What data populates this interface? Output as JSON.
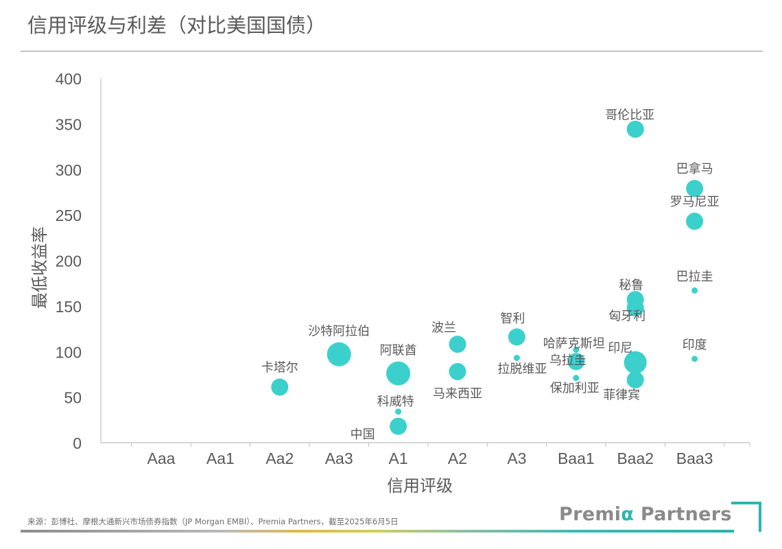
{
  "page": {
    "title": "信用评级与利差（对比美国国债）",
    "source": "来源：彭博社、摩根大通新兴市场债券指数（JP Morgan EMBI）、Premia Partners，截至2025年6月5日",
    "logo": {
      "text_main": "Premi",
      "text_alpha": "α",
      "text_rest": " Partners"
    },
    "colors": {
      "bubble": "#3cd0cc",
      "axis": "#bfbfbf",
      "text": "#595959",
      "accent": "#2bb5b3"
    }
  },
  "chart_data": {
    "type": "scatter",
    "title": "信用评级与利差（对比美国国债）",
    "xlabel": "信用评级",
    "ylabel": "最低收益率",
    "categories": [
      "Aaa",
      "Aa1",
      "Aa2",
      "Aa3",
      "A1",
      "A2",
      "A3",
      "Baa1",
      "Baa2",
      "Baa3"
    ],
    "ylim": [
      0,
      400
    ],
    "yticks": [
      0,
      50,
      100,
      150,
      200,
      250,
      300,
      350,
      400
    ],
    "grid": false,
    "points": [
      {
        "label": "卡塔尔",
        "rating": "Aa2",
        "y": 61,
        "size": "medium",
        "label_pos": "above"
      },
      {
        "label": "沙特阿拉伯",
        "rating": "Aa3",
        "y": 97,
        "size": "large",
        "label_pos": "above"
      },
      {
        "label": "阿联酋",
        "rating": "A1",
        "y": 76,
        "size": "large",
        "label_pos": "above"
      },
      {
        "label": "科威特",
        "rating": "A1",
        "y": 34,
        "size": "small",
        "label_pos": "above"
      },
      {
        "label": "中国",
        "rating": "A1",
        "y": 18,
        "size": "medium",
        "label_pos": "below-left"
      },
      {
        "label": "波兰",
        "rating": "A2",
        "y": 108,
        "size": "medium",
        "label_pos": "above-left"
      },
      {
        "label": "马来西亚",
        "rating": "A2",
        "y": 78,
        "size": "medium",
        "label_pos": "below"
      },
      {
        "label": "智利",
        "rating": "A3",
        "y": 116,
        "size": "medium",
        "label_pos": "above-left"
      },
      {
        "label": "拉脱维亚",
        "rating": "A3",
        "y": 93,
        "size": "small",
        "label_pos": "below"
      },
      {
        "label": "哈萨克斯坦",
        "rating": "Baa1",
        "y": 102,
        "size": "small",
        "label_pos": "above-left"
      },
      {
        "label": "乌拉圭",
        "rating": "Baa1",
        "y": 89,
        "size": "medium",
        "label_pos": "below-left"
      },
      {
        "label": "保加利亚",
        "rating": "Baa1",
        "y": 71,
        "size": "small",
        "label_pos": "below"
      },
      {
        "label": "哥伦比亚",
        "rating": "Baa2",
        "y": 344,
        "size": "medium",
        "label_pos": "above-left"
      },
      {
        "label": "秘鲁",
        "rating": "Baa2",
        "y": 157,
        "size": "medium",
        "label_pos": "above-left"
      },
      {
        "label": "匈牙利",
        "rating": "Baa2",
        "y": 148,
        "size": "medium",
        "label_pos": "below-left"
      },
      {
        "label": "印尼",
        "rating": "Baa2",
        "y": 88,
        "size": "xlarge",
        "label_pos": "above-left"
      },
      {
        "label": "菲律宾",
        "rating": "Baa2",
        "y": 69,
        "size": "medium",
        "label_pos": "below-left"
      },
      {
        "label": "巴拿马",
        "rating": "Baa3",
        "y": 279,
        "size": "medium",
        "label_pos": "above"
      },
      {
        "label": "罗马尼亚",
        "rating": "Baa3",
        "y": 243,
        "size": "medium",
        "label_pos": "above"
      },
      {
        "label": "巴拉圭",
        "rating": "Baa3",
        "y": 167,
        "size": "small",
        "label_pos": "above"
      },
      {
        "label": "印度",
        "rating": "Baa3",
        "y": 92,
        "size": "small",
        "label_pos": "above"
      }
    ]
  }
}
